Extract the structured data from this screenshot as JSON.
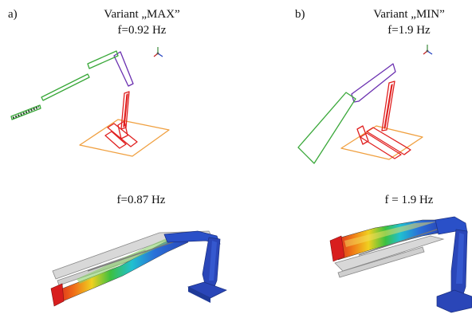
{
  "panel_a": {
    "label": "a)",
    "title": "Variant „MAX”",
    "freq_top": "f=0.92 Hz",
    "freq_bottom": "f=0.87 Hz"
  },
  "panel_b": {
    "label": "b)",
    "title": "Variant „MIN”",
    "freq_top": "f=1.9 Hz",
    "freq_bottom": "f = 1.9 Hz"
  },
  "colors": {
    "wire_green": "#3aa83a",
    "wire_purple": "#6a2fb0",
    "wire_red": "#e02020",
    "base_orange": "#f0a040",
    "fem_blue": "#2a46b8",
    "fem_red": "#d81e1e"
  }
}
